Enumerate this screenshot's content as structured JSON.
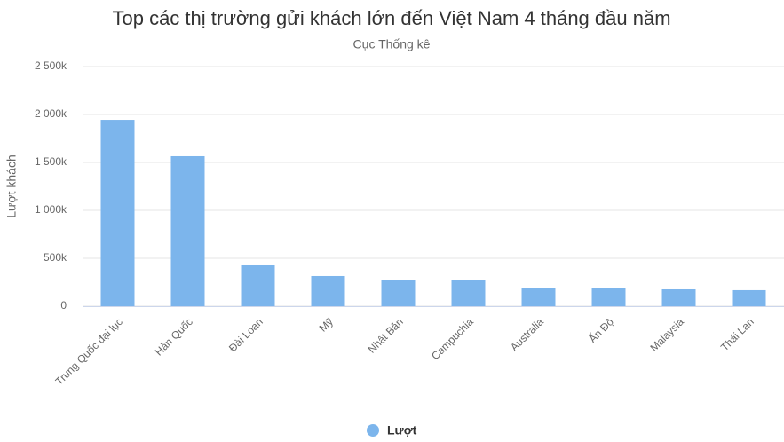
{
  "chart_data": {
    "type": "bar",
    "title": "Top các thị trường gửi khách lớn đến Việt Nam 4 tháng đầu năm",
    "subtitle": "Cục Thống kê",
    "y_label": "Lượt khách",
    "categories": [
      "Trung Quốc đại lục",
      "Hàn Quốc",
      "Đài Loan",
      "Mỹ",
      "Nhật Bản",
      "Campuchia",
      "Australia",
      "Ấn Độ",
      "Malaysia",
      "Thái Lan"
    ],
    "series": [
      {
        "name": "Lượt",
        "color": "#7cb5ec",
        "values": [
          1944000,
          1565000,
          426000,
          315000,
          269000,
          269000,
          194000,
          194000,
          176000,
          167000
        ]
      }
    ],
    "ylim": [
      0,
      2500000
    ],
    "yticks": [
      0,
      {
        "value": 500000,
        "label": "500k"
      },
      {
        "value": 1000000,
        "label": "1 000k"
      },
      {
        "value": 1500000,
        "label": "1 500k"
      },
      {
        "value": 2000000,
        "label": "2 000k"
      },
      {
        "value": 2500000,
        "label": "2 500k"
      }
    ],
    "grid": true
  }
}
